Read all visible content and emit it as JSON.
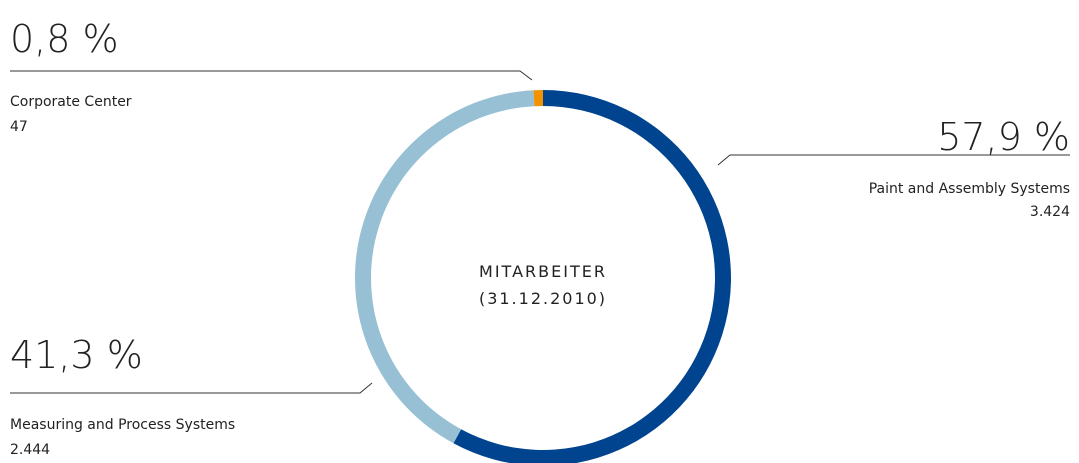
{
  "chart_data": {
    "type": "donut",
    "center_title": "MITARBEITER",
    "center_subtitle": "(31.12.2010)",
    "categories": [
      "Paint and Assembly Systems",
      "Measuring and Process Systems",
      "Corporate Center"
    ],
    "values": [
      57.9,
      41.3,
      0.8
    ],
    "value_labels": [
      "57,9 %",
      "41,3 %",
      "0,8 %"
    ],
    "counts": [
      "3.424",
      "2.444",
      "47"
    ],
    "colors": [
      "#00438f",
      "#97c0d4",
      "#f39200"
    ]
  }
}
